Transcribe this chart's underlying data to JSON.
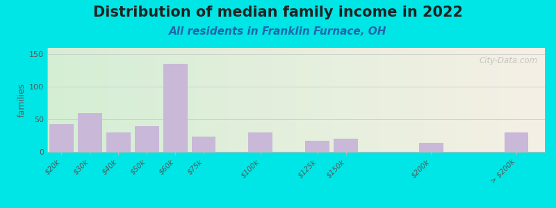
{
  "title": "Distribution of median family income in 2022",
  "subtitle": "All residents in Franklin Furnace, OH",
  "ylabel": "families",
  "categories": [
    "$20k",
    "$30k",
    "$40k",
    "$50k",
    "$60k",
    "$75k",
    "$100k",
    "$125k",
    "$150k",
    "$200k",
    "> $200k"
  ],
  "values": [
    43,
    60,
    30,
    40,
    135,
    23,
    30,
    17,
    20,
    14,
    30
  ],
  "bar_color": "#c9b8d8",
  "ylim": [
    0,
    160
  ],
  "yticks": [
    0,
    50,
    100,
    150
  ],
  "background_outer": "#00e5e5",
  "background_inner_left": "#d4eed4",
  "background_inner_right": "#f5f0e5",
  "title_fontsize": 15,
  "subtitle_fontsize": 11,
  "watermark": "City-Data.com",
  "grid_color": "#cccccc",
  "bar_positions": [
    0,
    1,
    2,
    3,
    4,
    5,
    7,
    9,
    10,
    13,
    16
  ],
  "xlim": [
    0,
    17.5
  ],
  "xtick_positions": [
    0.5,
    1.5,
    2.5,
    3.5,
    4.5,
    5.5,
    7.5,
    9.5,
    10.5,
    13.5,
    16.5
  ]
}
